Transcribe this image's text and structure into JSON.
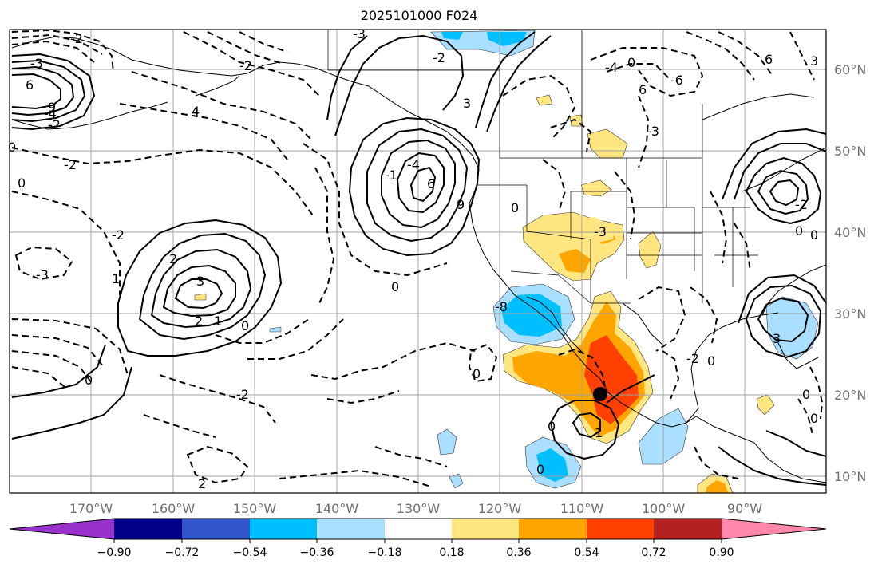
{
  "title": "2025101000 F024",
  "lon_labels": [
    "170°W",
    "160°W",
    "150°W",
    "140°W",
    "130°W",
    "120°W",
    "110°W",
    "100°W",
    "90°W"
  ],
  "lat_labels": [
    "60°N",
    "50°N",
    "40°N",
    "30°N",
    "20°N",
    "10°N"
  ],
  "colorbar": {
    "colors": [
      "#9932cc",
      "#000088",
      "#3355cc",
      "#00bfff",
      "#aadfff",
      "#ffffff",
      "#ffe680",
      "#ffa500",
      "#ff4000",
      "#b22222",
      "#ff88aa"
    ],
    "tick_labels": [
      "−0.90",
      "−0.72",
      "−0.54",
      "−0.36",
      "−0.18",
      "0.18",
      "0.36",
      "0.54",
      "0.72",
      "0.90"
    ]
  },
  "contour_labels": [
    "-2",
    "-3",
    "6",
    "9",
    "-4",
    "-2",
    "0",
    "-2",
    "4",
    "0",
    "-2",
    "-3",
    "2",
    "1",
    "3",
    "2",
    "1",
    "0",
    "0",
    "-2",
    "2",
    "-2",
    "-3",
    "-1",
    "-4",
    "3",
    "6",
    "9",
    "0",
    "-2",
    "0",
    "-4",
    "0",
    "6",
    "-3",
    "-6",
    "-8",
    "0",
    "0",
    "-3",
    "-2",
    "0",
    "6",
    "3",
    "-2",
    "3",
    "0",
    "0",
    "0",
    "1",
    "0",
    "0"
  ],
  "marker": "storm-center"
}
